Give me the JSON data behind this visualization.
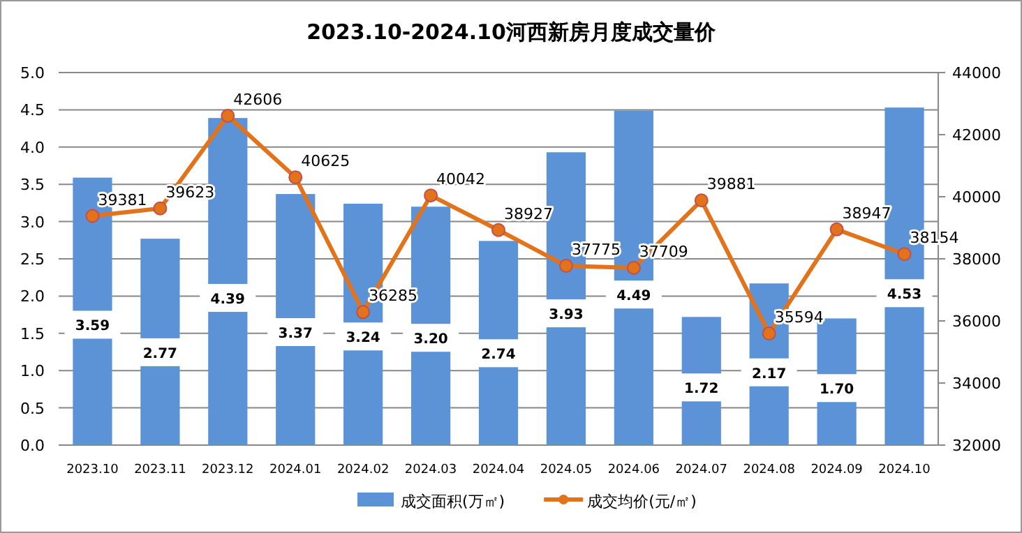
{
  "chart_data": {
    "type": "bar",
    "title": "2023.10-2024.10河西新房月度成交量价",
    "categories": [
      "2023.10",
      "2023.11",
      "2023.12",
      "2024.01",
      "2024.02",
      "2024.03",
      "2024.04",
      "2024.05",
      "2024.06",
      "2024.07",
      "2024.08",
      "2024.09",
      "2024.10"
    ],
    "series": [
      {
        "name": "成交面积(万㎡)",
        "color": "#5b93d6",
        "values": [
          3.59,
          2.77,
          4.39,
          3.37,
          3.24,
          3.2,
          2.74,
          3.93,
          4.49,
          1.72,
          2.17,
          1.7,
          4.53
        ],
        "value_labels": [
          "3.59",
          "2.77",
          "4.39",
          "3.37",
          "3.24",
          "3.20",
          "2.74",
          "3.93",
          "4.49",
          "1.72",
          "2.17",
          "1.70",
          "4.53"
        ]
      },
      {
        "name": "成交均价(元/㎡)",
        "type": "line",
        "axis": "y2",
        "color": "#e3731b",
        "marker": "circle",
        "values": [
          39381,
          39623,
          42606,
          40625,
          36285,
          40042,
          38927,
          37775,
          37709,
          39881,
          35594,
          38947,
          38154
        ]
      }
    ],
    "ylim": [
      0,
      5
    ],
    "yticks": [
      {
        "value": 0,
        "label": "0.0"
      },
      {
        "value": 0.5,
        "label": "0.5"
      },
      {
        "value": 1,
        "label": "1.0"
      },
      {
        "value": 1.5,
        "label": "1.5"
      },
      {
        "value": 2,
        "label": "2.0"
      },
      {
        "value": 2.5,
        "label": "2.5"
      },
      {
        "value": 3,
        "label": "3.0"
      },
      {
        "value": 3.5,
        "label": "3.5"
      },
      {
        "value": 4,
        "label": "4.0"
      },
      {
        "value": 4.5,
        "label": "4.5"
      },
      {
        "value": 5,
        "label": "5.0"
      }
    ],
    "y2lim": [
      32000,
      44000
    ],
    "y2ticks": [
      32000,
      34000,
      36000,
      38000,
      40000,
      42000,
      44000
    ],
    "grid": "y",
    "legend": "bottom",
    "data_labels": true
  }
}
